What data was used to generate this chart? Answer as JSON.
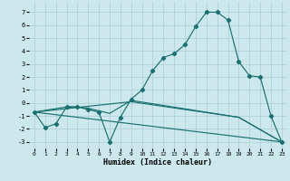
{
  "xlabel": "Humidex (Indice chaleur)",
  "bg_color": "#cce8ec",
  "grid_color": "#aacdd4",
  "line_color": "#1a7070",
  "xlim": [
    -0.5,
    23.5
  ],
  "ylim": [
    -3.5,
    7.8
  ],
  "yticks": [
    -3,
    -2,
    -1,
    0,
    1,
    2,
    3,
    4,
    5,
    6,
    7
  ],
  "xticks": [
    0,
    1,
    2,
    3,
    4,
    5,
    6,
    7,
    8,
    9,
    10,
    11,
    12,
    13,
    14,
    15,
    16,
    17,
    18,
    19,
    20,
    21,
    22,
    23
  ],
  "series0_x": [
    0,
    1,
    2,
    3,
    4,
    5,
    6,
    7,
    8,
    9,
    10,
    11,
    12,
    13,
    14,
    15,
    16,
    17,
    18,
    19,
    20,
    21,
    22,
    23
  ],
  "series0_y": [
    -0.7,
    -1.9,
    -1.6,
    -0.3,
    -0.3,
    -0.5,
    -0.7,
    -3.0,
    -1.1,
    0.3,
    1.0,
    2.5,
    3.5,
    3.8,
    4.5,
    5.9,
    7.0,
    7.0,
    6.4,
    3.2,
    2.1,
    2.0,
    -1.0,
    -3.0
  ],
  "series1_x": [
    0,
    3,
    4,
    5,
    7,
    9,
    19,
    23
  ],
  "series1_y": [
    -0.7,
    -0.3,
    -0.3,
    -0.4,
    -0.8,
    0.2,
    -1.1,
    -3.0
  ],
  "series2_x": [
    0,
    23
  ],
  "series2_y": [
    -0.7,
    -3.0
  ],
  "series3_x": [
    0,
    9,
    19,
    23
  ],
  "series3_y": [
    -0.7,
    0.1,
    -1.1,
    -3.0
  ]
}
